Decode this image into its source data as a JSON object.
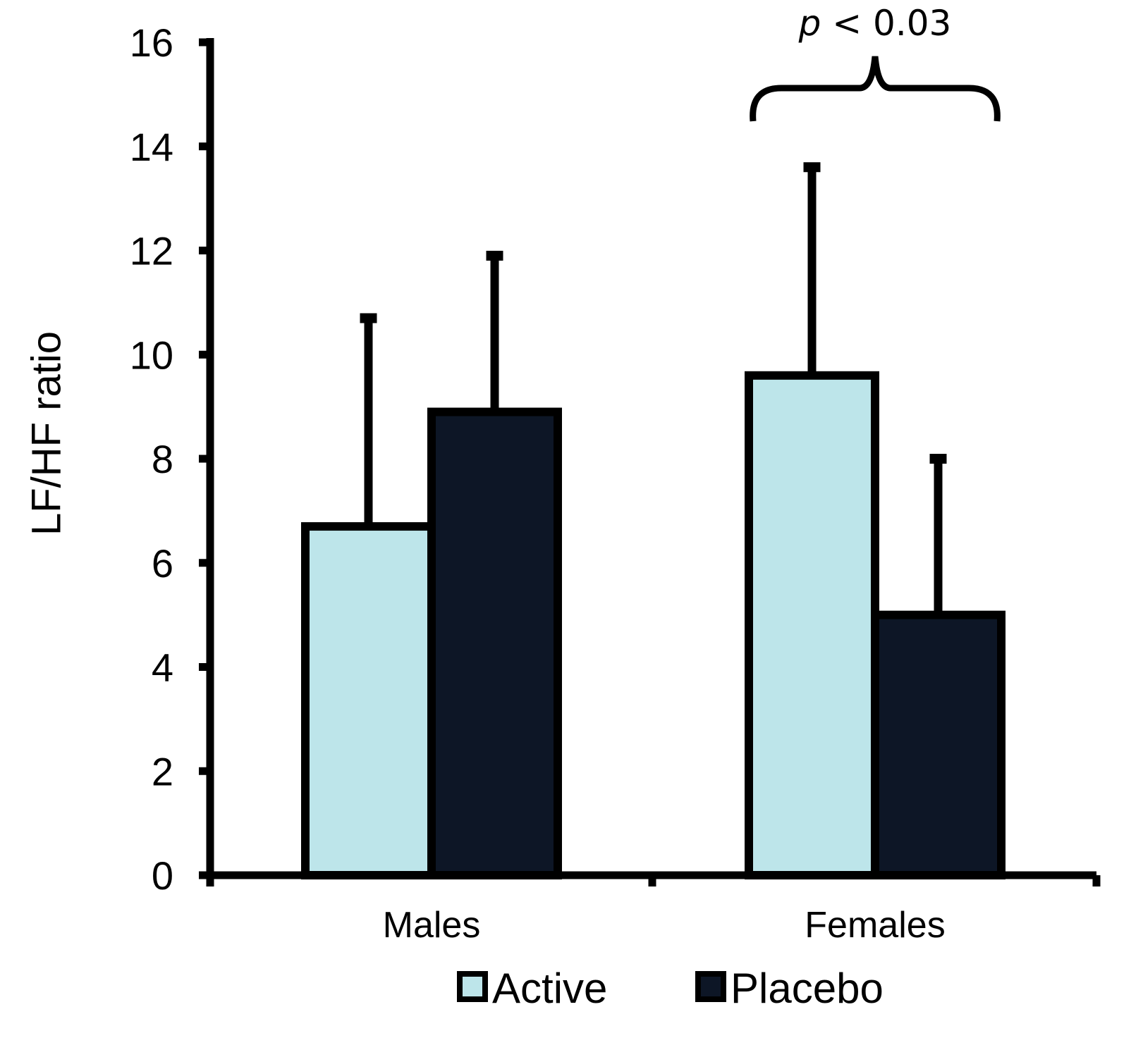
{
  "chart_data": {
    "type": "bar",
    "title": "",
    "xlabel": "",
    "ylabel": "LF/HF ratio",
    "ylim": [
      0,
      16
    ],
    "yticks": [
      "0",
      "2",
      "4",
      "6",
      "8",
      "10",
      "12",
      "14",
      "16"
    ],
    "categories": [
      "Males",
      "Females"
    ],
    "series": [
      {
        "name": "Active",
        "color": "#bde5ea",
        "values": [
          6.7,
          9.6
        ],
        "error": [
          4.0,
          4.0
        ]
      },
      {
        "name": "Placebo",
        "color": "#0d1626",
        "values": [
          8.9,
          5.0
        ],
        "error": [
          3.0,
          3.0
        ]
      }
    ],
    "error_bars": "upper only",
    "grid": false,
    "legend_position": "bottom",
    "annotation": {
      "p_symbol": "p",
      "text": " < 0.03",
      "spans": "Females"
    }
  }
}
